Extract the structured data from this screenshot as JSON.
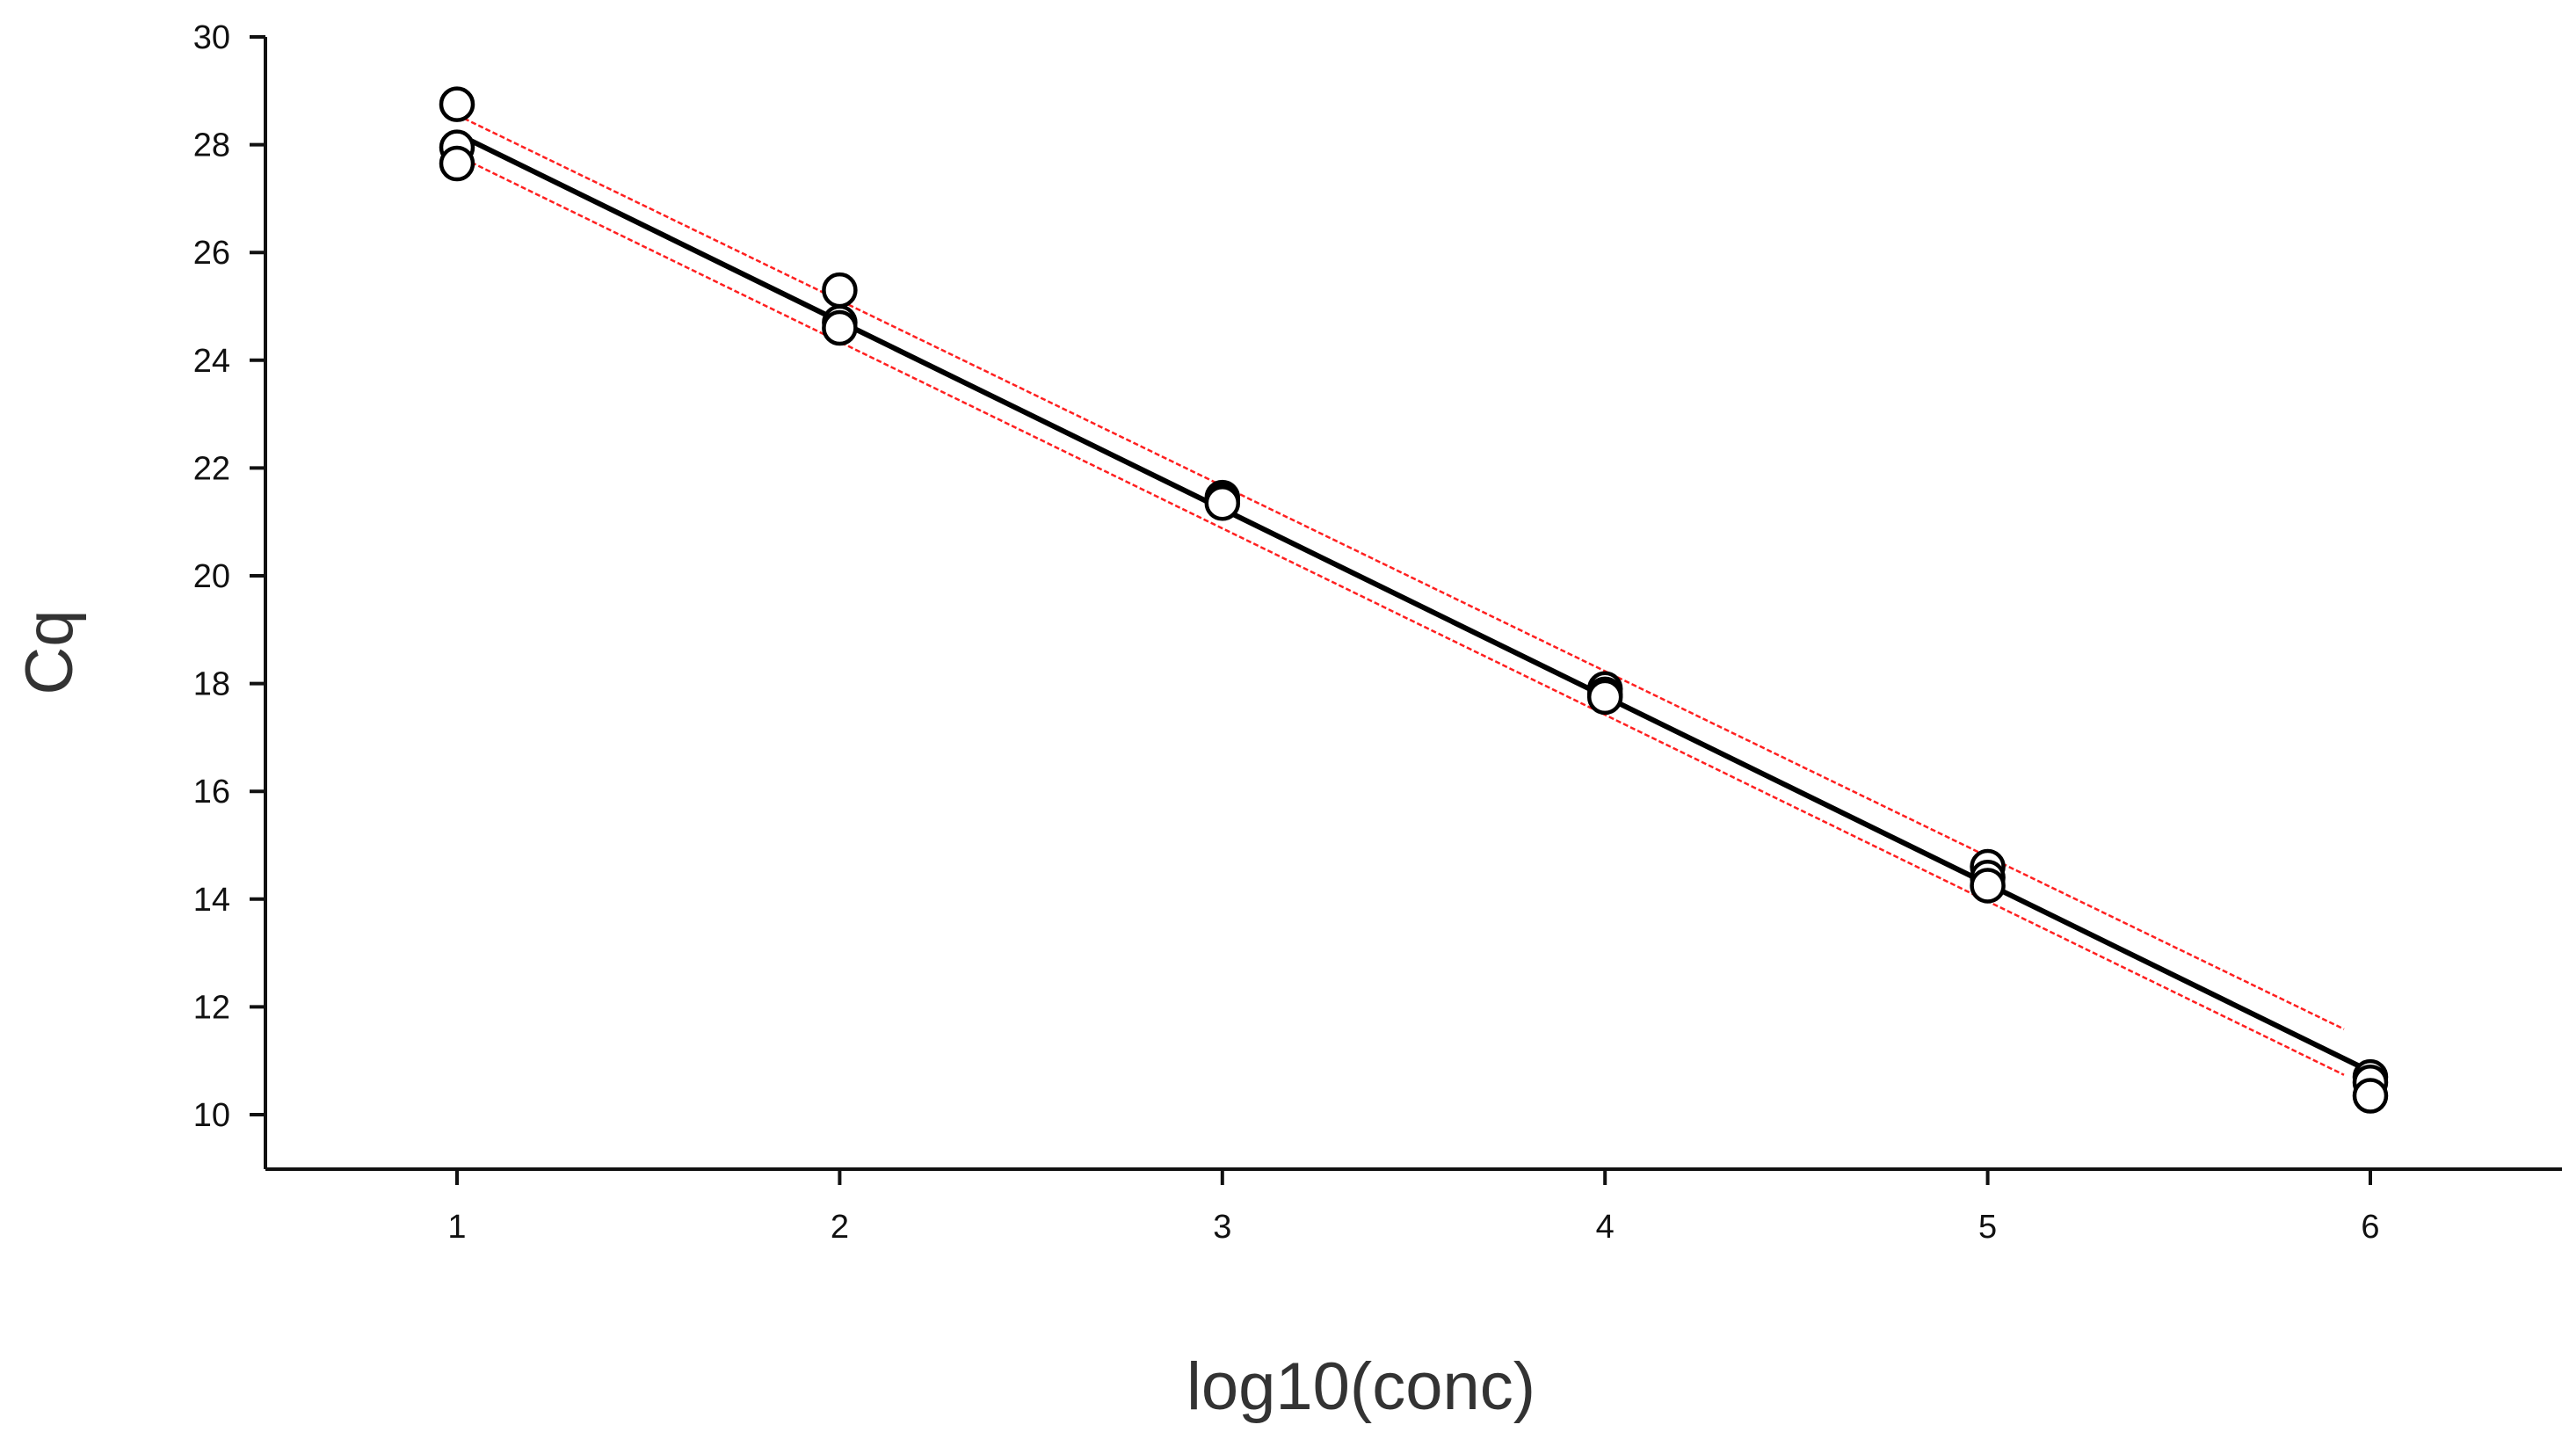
{
  "chart_data": {
    "type": "scatter",
    "title": "",
    "xlabel": "log10(conc)",
    "ylabel": "Cq",
    "xlim": [
      0.5,
      6.5
    ],
    "ylim": [
      9,
      30
    ],
    "x_ticks": [
      "1",
      "2",
      "3",
      "4",
      "5",
      "6"
    ],
    "y_ticks": [
      "10",
      "12",
      "14",
      "16",
      "18",
      "20",
      "22",
      "24",
      "26",
      "28",
      "30"
    ],
    "grid": false,
    "legend": "none",
    "points": [
      {
        "x": 1,
        "y": 28.75
      },
      {
        "x": 1,
        "y": 27.95
      },
      {
        "x": 1,
        "y": 27.65
      },
      {
        "x": 2,
        "y": 25.3
      },
      {
        "x": 2,
        "y": 24.7
      },
      {
        "x": 2,
        "y": 24.6
      },
      {
        "x": 3,
        "y": 21.45
      },
      {
        "x": 3,
        "y": 21.4
      },
      {
        "x": 3,
        "y": 21.35
      },
      {
        "x": 4,
        "y": 17.9
      },
      {
        "x": 4,
        "y": 17.8
      },
      {
        "x": 4,
        "y": 17.75
      },
      {
        "x": 5,
        "y": 14.6
      },
      {
        "x": 5,
        "y": 14.4
      },
      {
        "x": 5,
        "y": 14.25
      },
      {
        "x": 6,
        "y": 10.7
      },
      {
        "x": 6,
        "y": 10.6
      },
      {
        "x": 6,
        "y": 10.35
      }
    ],
    "fit_line": {
      "x": [
        1,
        6
      ],
      "y": [
        28.2,
        10.8
      ]
    },
    "confidence_band_upper": {
      "x": [
        1,
        6
      ],
      "y": [
        28.55,
        11.35
      ]
    },
    "confidence_band_lower": {
      "x": [
        1,
        6
      ],
      "y": [
        27.8,
        10.5
      ]
    },
    "colors": {
      "axis": "#111111",
      "fit_line": "#000000",
      "confidence_band": "#ff2020",
      "point_fill": "#ffffff",
      "point_stroke": "#000000"
    }
  }
}
